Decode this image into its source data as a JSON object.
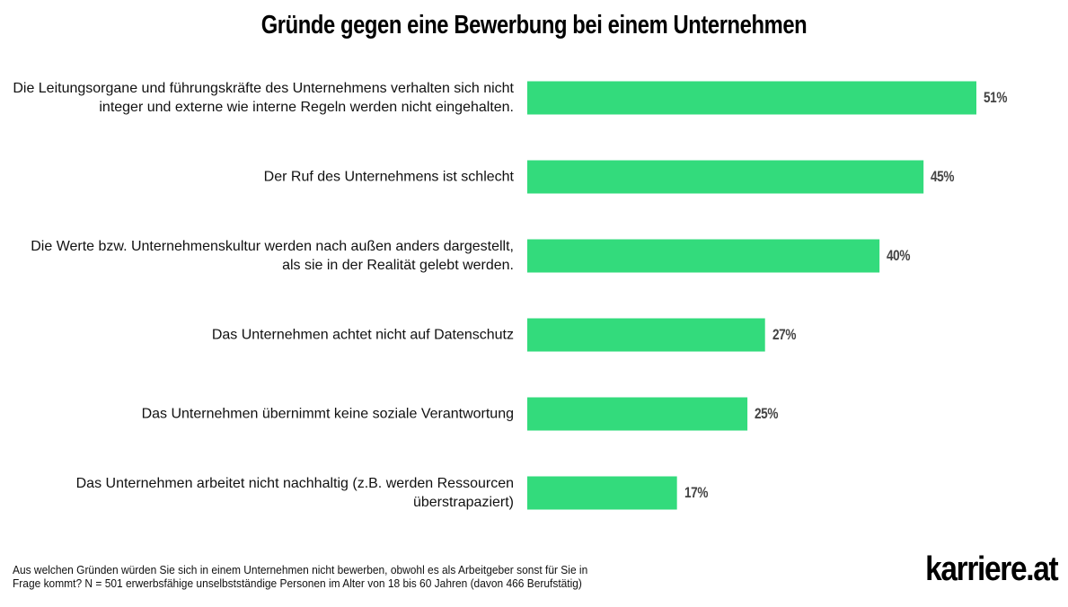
{
  "chart_data": {
    "type": "bar",
    "orientation": "horizontal",
    "title": "Gründe gegen eine Bewerbung bei einem Unternehmen",
    "categories": [
      "Die Leitungsorgane und führungskräfte des Unternehmens verhalten sich nicht integer und externe wie interne Regeln werden nicht eingehalten.",
      "Der Ruf des Unternehmens ist schlecht",
      "Die Werte bzw. Unternehmenskultur werden nach außen anders dargestellt, als sie in der Realität gelebt werden.",
      "Das Unternehmen achtet nicht auf Datenschutz",
      "Das Unternehmen übernimmt keine soziale Verantwortung",
      "Das Unternehmen arbeitet nicht nachhaltig (z.B. werden Ressourcen überstrapaziert)"
    ],
    "values": [
      51,
      45,
      40,
      27,
      25,
      17
    ],
    "data_labels": [
      "51%",
      "45%",
      "40%",
      "27%",
      "25%",
      "17%"
    ],
    "unit": "%",
    "grid": false,
    "xlim": [
      0,
      100
    ],
    "bar_color": "#33DB7C"
  },
  "footnote": "Aus welchen Gründen würden Sie sich in einem Unternehmen nicht bewerben, obwohl es als Arbeitgeber sonst für Sie in Frage kommt? N = 501 erwerbsfähige unselbstständige Personen im Alter von 18 bis 60 Jahren (davon 466 Berufstätig)",
  "logo": "karriere.at"
}
